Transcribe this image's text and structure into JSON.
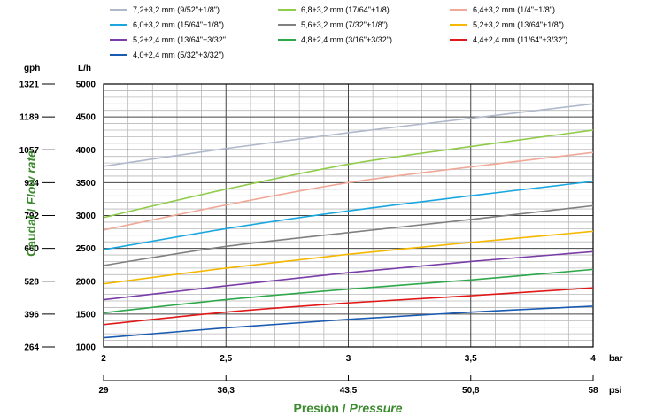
{
  "chart_data": {
    "type": "line",
    "x_primary": {
      "unit": "bar",
      "ticks": [
        2,
        2.5,
        3,
        3.5,
        4
      ],
      "tick_labels": [
        "2",
        "2,5",
        "3",
        "3,5",
        "4"
      ],
      "range": [
        2,
        4
      ]
    },
    "x_secondary": {
      "unit": "psi",
      "tick_labels": [
        "29",
        "36,3",
        "43,5",
        "50,8",
        "58"
      ]
    },
    "y_primary": {
      "unit": "L/h",
      "ticks": [
        1000,
        1500,
        2000,
        2500,
        3000,
        3500,
        4000,
        4500,
        5000
      ],
      "range": [
        1000,
        5000
      ]
    },
    "y_secondary": {
      "unit": "gph",
      "tick_labels": [
        "264",
        "396",
        "528",
        "660",
        "792",
        "924",
        "1057",
        "1189",
        "1321"
      ]
    },
    "ylabel": {
      "es": "Caudal / ",
      "en": "Flow rate"
    },
    "xlabel": {
      "es": "Presión / ",
      "en": "Pressure"
    },
    "grid": true,
    "legend_position": "top",
    "series": [
      {
        "name": "7,2+3,2 mm (9/52\"+1/8\")",
        "color": "#b0b8cc",
        "x": [
          2,
          2.5,
          3,
          3.5,
          4
        ],
        "values": [
          3750,
          4020,
          4260,
          4480,
          4700
        ]
      },
      {
        "name": "6,8+3,2 mm (17/64\"+1/8)",
        "color": "#8fcc4a",
        "x": [
          2,
          2.5,
          3,
          3.5,
          4
        ],
        "values": [
          2970,
          3400,
          3780,
          4050,
          4300
        ]
      },
      {
        "name": "6,4+3,2 mm (1/4\"+1/8\")",
        "color": "#f0a898",
        "x": [
          2,
          2.5,
          3,
          3.5,
          4
        ],
        "values": [
          2780,
          3160,
          3500,
          3740,
          3960
        ]
      },
      {
        "name": "6,0+3,2 mm (15/64\"+1/8\")",
        "color": "#1aa7e0",
        "x": [
          2,
          2.5,
          3,
          3.5,
          4
        ],
        "values": [
          2480,
          2800,
          3070,
          3300,
          3520
        ]
      },
      {
        "name": "5,6+3,2 mm (7/32\"+1/8\")",
        "color": "#808080",
        "x": [
          2,
          2.5,
          3,
          3.5,
          4
        ],
        "values": [
          2240,
          2530,
          2740,
          2940,
          3150
        ]
      },
      {
        "name": "5,2+3,2 mm (13/64\"+1/8\")",
        "color": "#f5b800",
        "x": [
          2,
          2.5,
          3,
          3.5,
          4
        ],
        "values": [
          1960,
          2200,
          2410,
          2590,
          2760
        ]
      },
      {
        "name": "5,2+2,4 mm (13/64\"+3/32\"",
        "color": "#7a3ea8",
        "x": [
          2,
          2.5,
          3,
          3.5,
          4
        ],
        "values": [
          1720,
          1930,
          2130,
          2300,
          2450
        ]
      },
      {
        "name": "4,8+2,4 mm (3/16\"+3/32\")",
        "color": "#2ea84a",
        "x": [
          2,
          2.5,
          3,
          3.5,
          4
        ],
        "values": [
          1520,
          1720,
          1880,
          2020,
          2180
        ]
      },
      {
        "name": "4,4+2,4 mm (11/64\"+3/32\")",
        "color": "#e01818",
        "x": [
          2,
          2.5,
          3,
          3.5,
          4
        ],
        "values": [
          1340,
          1530,
          1670,
          1780,
          1900
        ]
      },
      {
        "name": "4,0+2,4 mm (5/32\"+3/32\")",
        "color": "#1a5ab0",
        "x": [
          2,
          2.5,
          3,
          3.5,
          4
        ],
        "values": [
          1140,
          1290,
          1420,
          1530,
          1620
        ]
      }
    ]
  }
}
